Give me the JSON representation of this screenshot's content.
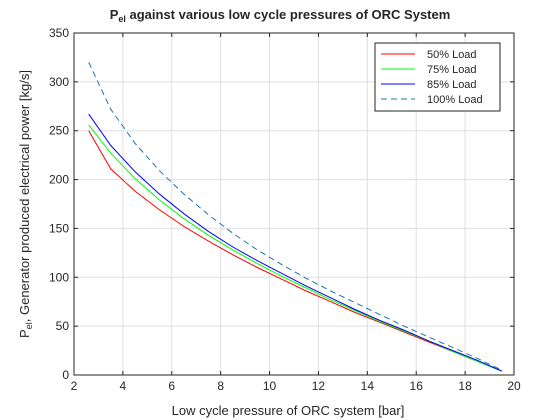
{
  "chart_data": {
    "type": "line",
    "title_main": "P",
    "title_sub": "el",
    "title_rest": "  against various low cycle pressures of ORC System",
    "xlabel": "Low cycle pressure of ORC system [bar]",
    "ylabel_main": "P",
    "ylabel_sub": "el",
    "ylabel_rest": ", Generator produced electrical power [kg/s]",
    "xlim": [
      2,
      20
    ],
    "ylim": [
      0,
      350
    ],
    "xticks": [
      2,
      4,
      6,
      8,
      10,
      12,
      14,
      16,
      18,
      20
    ],
    "yticks": [
      0,
      50,
      100,
      150,
      200,
      250,
      300,
      350
    ],
    "grid": true,
    "legend_position": "top-right",
    "series": [
      {
        "name": "50% Load",
        "color": "#ff0000",
        "dash": "solid",
        "x": [
          2.6,
          3.5,
          4.5,
          5.5,
          6.5,
          7.5,
          8.5,
          9.5,
          10.5,
          11.5,
          12.5,
          13.5,
          14.5,
          15.5,
          16.5,
          17.5,
          18.5,
          19.5
        ],
        "y": [
          250,
          211,
          188,
          169,
          152,
          137,
          123,
          110,
          98,
          86,
          75,
          64,
          54,
          44,
          34,
          24,
          14,
          4
        ]
      },
      {
        "name": "75% Load",
        "color": "#00ff00",
        "dash": "solid",
        "x": [
          2.6,
          3.5,
          4.5,
          5.5,
          6.5,
          7.5,
          8.5,
          9.5,
          10.5,
          11.5,
          12.5,
          13.5,
          14.5,
          15.5,
          16.5,
          17.5,
          18.5,
          19.5
        ],
        "y": [
          256,
          227,
          201,
          179,
          160,
          143,
          128,
          114,
          101,
          89,
          77,
          66,
          55,
          45,
          35,
          24,
          14,
          4
        ]
      },
      {
        "name": "85% Load",
        "color": "#0000ff",
        "dash": "solid",
        "x": [
          2.6,
          3.5,
          4.5,
          5.5,
          6.5,
          7.5,
          8.5,
          9.5,
          10.5,
          11.5,
          12.5,
          13.5,
          14.5,
          15.5,
          16.5,
          17.5,
          18.5,
          19.5
        ],
        "y": [
          267,
          235,
          208,
          185,
          165,
          147,
          131,
          117,
          104,
          91,
          79,
          67,
          56,
          46,
          35,
          25,
          15,
          4
        ]
      },
      {
        "name": "100% Load",
        "color": "#1a74b3",
        "dash": "dashed",
        "x": [
          2.6,
          3.5,
          4.5,
          5.5,
          6.5,
          7.5,
          8.5,
          9.5,
          10.5,
          11.5,
          12.5,
          13.5,
          14.5,
          15.5,
          16.5,
          17.5,
          18.5,
          19.5
        ],
        "y": [
          320,
          272,
          237,
          209,
          185,
          164,
          145,
          128,
          113,
          99,
          86,
          74,
          62,
          50,
          39,
          28,
          17,
          5
        ]
      }
    ]
  }
}
